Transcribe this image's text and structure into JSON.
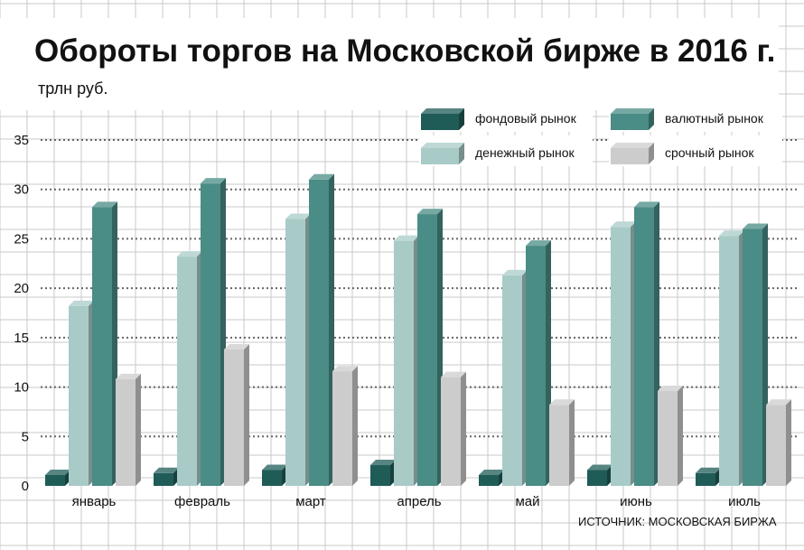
{
  "chart_data": {
    "type": "bar",
    "title": "Обороты торгов на Московской бирже в 2016 г.",
    "unit": "трлн руб.",
    "source": "ИСТОЧНИК: МОСКОВСКАЯ БИРЖА",
    "categories": [
      "январь",
      "февраль",
      "март",
      "апрель",
      "май",
      "июнь",
      "июль"
    ],
    "ylim": [
      0,
      35
    ],
    "yticks": [
      0,
      5,
      10,
      15,
      20,
      25,
      30,
      35
    ],
    "grid": true,
    "legend_position": "top-right",
    "series": [
      {
        "name": "фондовый рынок",
        "color": "#1f5c58",
        "values": [
          1.1,
          1.3,
          1.6,
          2.1,
          1.1,
          1.6,
          1.3
        ]
      },
      {
        "name": "денежный рынок",
        "color": "#a8cbc8",
        "values": [
          18.2,
          23.2,
          27.0,
          24.8,
          21.3,
          26.2,
          25.3
        ]
      },
      {
        "name": "валютный рынок",
        "color": "#4a8c86",
        "values": [
          28.2,
          30.6,
          31.0,
          27.5,
          24.3,
          28.2,
          26.0
        ]
      },
      {
        "name": "срочный рынок",
        "color": "#cccccc",
        "values": [
          10.8,
          13.8,
          11.6,
          11.0,
          8.2,
          9.6,
          8.2
        ]
      }
    ]
  }
}
